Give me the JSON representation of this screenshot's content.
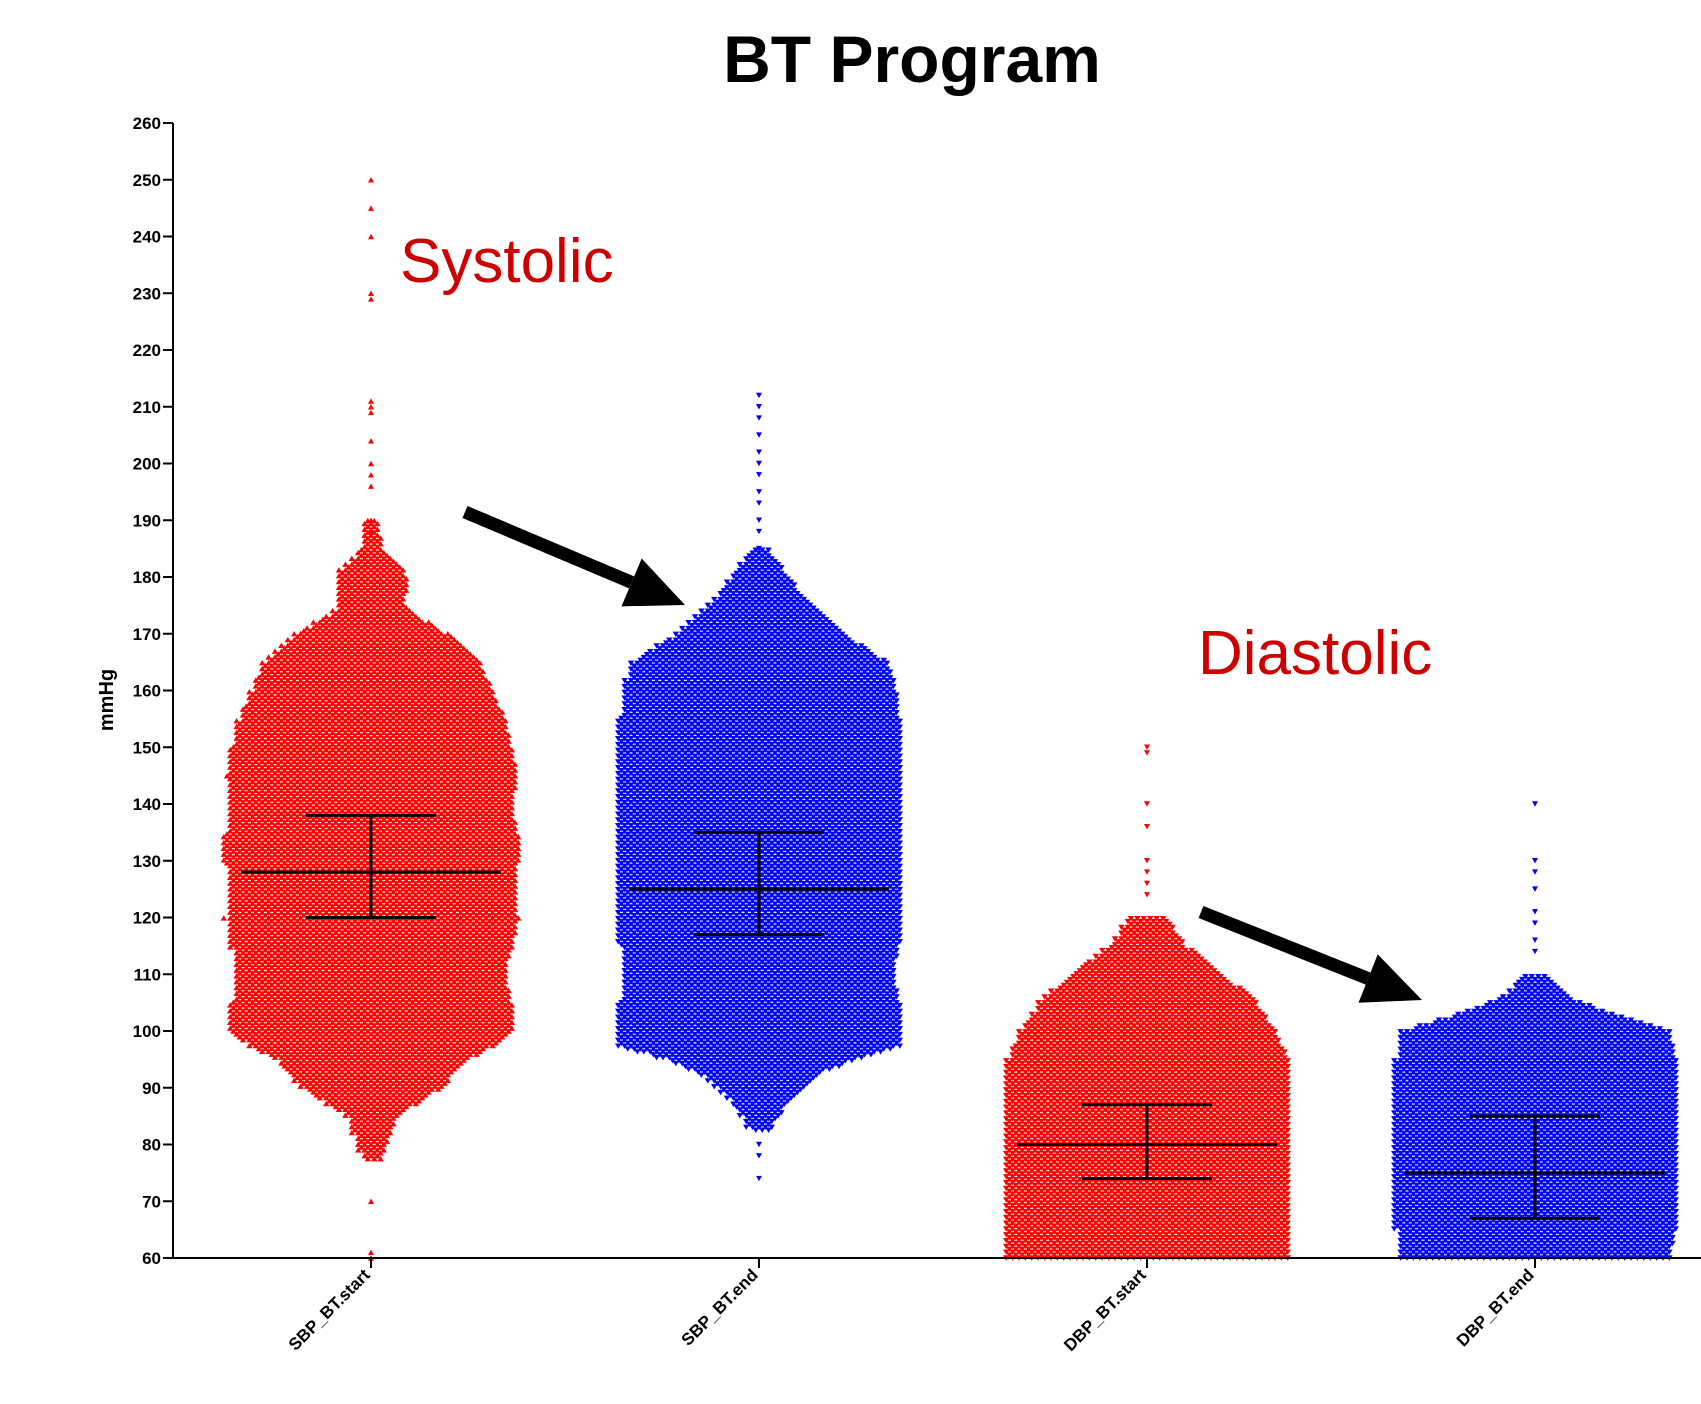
{
  "colors": {
    "start": "#ff0000",
    "end": "#0000ff",
    "annotation": "#cc0000",
    "stats": "#000000",
    "arrow": "#000000",
    "axis": "#000000"
  },
  "chart_data": {
    "type": "scatter",
    "subtype": "beeswarm-dot-plot",
    "title": "BT Program",
    "ylabel": "mmHg",
    "xlabel": "",
    "ylim": [
      60,
      260
    ],
    "yticks": [
      60,
      70,
      80,
      90,
      100,
      110,
      120,
      130,
      140,
      150,
      160,
      170,
      180,
      190,
      200,
      210,
      220,
      230,
      240,
      250,
      260
    ],
    "grid": false,
    "legend": "none",
    "categories": [
      "SBP_BT.start",
      "SBP_BT.end",
      "DBP_BT.start",
      "DBP_BT.end"
    ],
    "series": [
      {
        "category": "SBP_BT.start",
        "color": "red",
        "marker": "triangle-up",
        "median": 128,
        "q1": 120,
        "q3": 138,
        "min": 60,
        "max": 250,
        "outliers": [
          250,
          245,
          240,
          230,
          229,
          211,
          210,
          209,
          204,
          200,
          198,
          196,
          190,
          188,
          70,
          61,
          60
        ],
        "profile": [
          [
            77,
            0.3
          ],
          [
            85,
            0.8
          ],
          [
            90,
            2.2
          ],
          [
            95,
            3.0
          ],
          [
            98,
            4.0
          ],
          [
            100,
            4.4
          ],
          [
            105,
            4.4
          ],
          [
            110,
            4.2
          ],
          [
            115,
            4.4
          ],
          [
            120,
            4.6
          ],
          [
            125,
            4.5
          ],
          [
            130,
            4.6
          ],
          [
            135,
            4.6
          ],
          [
            140,
            4.4
          ],
          [
            145,
            4.6
          ],
          [
            150,
            4.4
          ],
          [
            155,
            4.2
          ],
          [
            160,
            3.8
          ],
          [
            165,
            3.4
          ],
          [
            170,
            2.4
          ],
          [
            175,
            1.0
          ],
          [
            180,
            1.2
          ],
          [
            185,
            0.4
          ],
          [
            190,
            0.2
          ]
        ]
      },
      {
        "category": "SBP_BT.end",
        "color": "blue",
        "marker": "triangle-down",
        "median": 125,
        "q1": 117,
        "q3": 135,
        "min": 74,
        "max": 212,
        "outliers": [
          212,
          210,
          208,
          205,
          202,
          200,
          198,
          195,
          193,
          190,
          188,
          185,
          74,
          78,
          80
        ],
        "profile": [
          [
            82,
            0.3
          ],
          [
            88,
            1.0
          ],
          [
            92,
            1.8
          ],
          [
            95,
            3.0
          ],
          [
            97,
            4.4
          ],
          [
            100,
            4.4
          ],
          [
            105,
            4.4
          ],
          [
            110,
            4.2
          ],
          [
            115,
            4.4
          ],
          [
            120,
            4.4
          ],
          [
            125,
            4.4
          ],
          [
            130,
            4.4
          ],
          [
            135,
            4.4
          ],
          [
            140,
            4.4
          ],
          [
            145,
            4.4
          ],
          [
            150,
            4.4
          ],
          [
            155,
            4.4
          ],
          [
            160,
            4.3
          ],
          [
            165,
            4.0
          ],
          [
            170,
            2.6
          ],
          [
            175,
            1.6
          ],
          [
            180,
            0.9
          ],
          [
            185,
            0.3
          ]
        ]
      },
      {
        "category": "DBP_BT.start",
        "color": "red",
        "marker": "triangle-down",
        "median": 80,
        "q1": 74,
        "q3": 87,
        "min": 60,
        "max": 150,
        "outliers": [
          150,
          149,
          140,
          136,
          130,
          128,
          126,
          124
        ],
        "profile": [
          [
            60,
            4.4
          ],
          [
            65,
            4.4
          ],
          [
            70,
            4.4
          ],
          [
            75,
            4.4
          ],
          [
            80,
            4.4
          ],
          [
            85,
            4.4
          ],
          [
            90,
            4.4
          ],
          [
            95,
            4.4
          ],
          [
            100,
            4.0
          ],
          [
            105,
            3.4
          ],
          [
            110,
            2.4
          ],
          [
            115,
            1.2
          ],
          [
            120,
            0.6
          ]
        ]
      },
      {
        "category": "DBP_BT.end",
        "color": "blue",
        "marker": "triangle-down",
        "median": 75,
        "q1": 67,
        "q3": 85,
        "min": 60,
        "max": 140,
        "outliers": [
          140,
          130,
          128,
          125,
          121,
          119,
          116,
          114
        ],
        "profile": [
          [
            60,
            4.2
          ],
          [
            65,
            4.4
          ],
          [
            70,
            4.4
          ],
          [
            75,
            4.4
          ],
          [
            80,
            4.4
          ],
          [
            85,
            4.4
          ],
          [
            90,
            4.4
          ],
          [
            95,
            4.4
          ],
          [
            100,
            4.2
          ],
          [
            103,
            2.4
          ],
          [
            106,
            1.0
          ],
          [
            110,
            0.4
          ]
        ]
      }
    ],
    "annotations": [
      {
        "text": "Systolic",
        "color": "#cc0000"
      },
      {
        "text": "Diastolic",
        "color": "#cc0000"
      }
    ],
    "arrows": [
      {
        "from_category": "SBP_BT.start",
        "to_category": "SBP_BT.end",
        "from_value": 191,
        "to_value": 170
      },
      {
        "from_category": "DBP_BT.start",
        "to_category": "DBP_BT.end",
        "from_value": 120,
        "to_value": 101
      }
    ]
  }
}
